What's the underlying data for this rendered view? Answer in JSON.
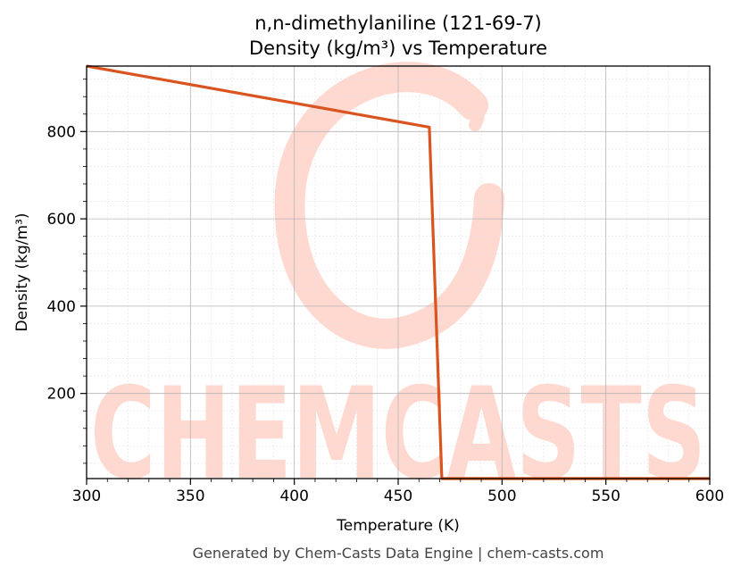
{
  "chart_data": {
    "type": "line",
    "title": "n,n-dimethylaniline (121-69-7)",
    "subtitle": "Density (kg/m³) vs Temperature",
    "xlabel": "Temperature (K)",
    "ylabel": "Density (kg/m³)",
    "xlim": [
      300,
      600
    ],
    "ylim": [
      5,
      950
    ],
    "xticks": [
      300,
      350,
      400,
      450,
      500,
      550,
      600
    ],
    "yticks": [
      200,
      400,
      600,
      800
    ],
    "grid": true,
    "legend": "none",
    "series": [
      {
        "color": "#d9541e",
        "x": [
          300,
          465,
          471,
          600
        ],
        "y": [
          950,
          810,
          5,
          5
        ]
      }
    ]
  },
  "watermark": {
    "text": "CHEMCASTS",
    "color": "#ffd8d0"
  },
  "footer": "Generated by Chem-Casts Data Engine | chem-casts.com"
}
